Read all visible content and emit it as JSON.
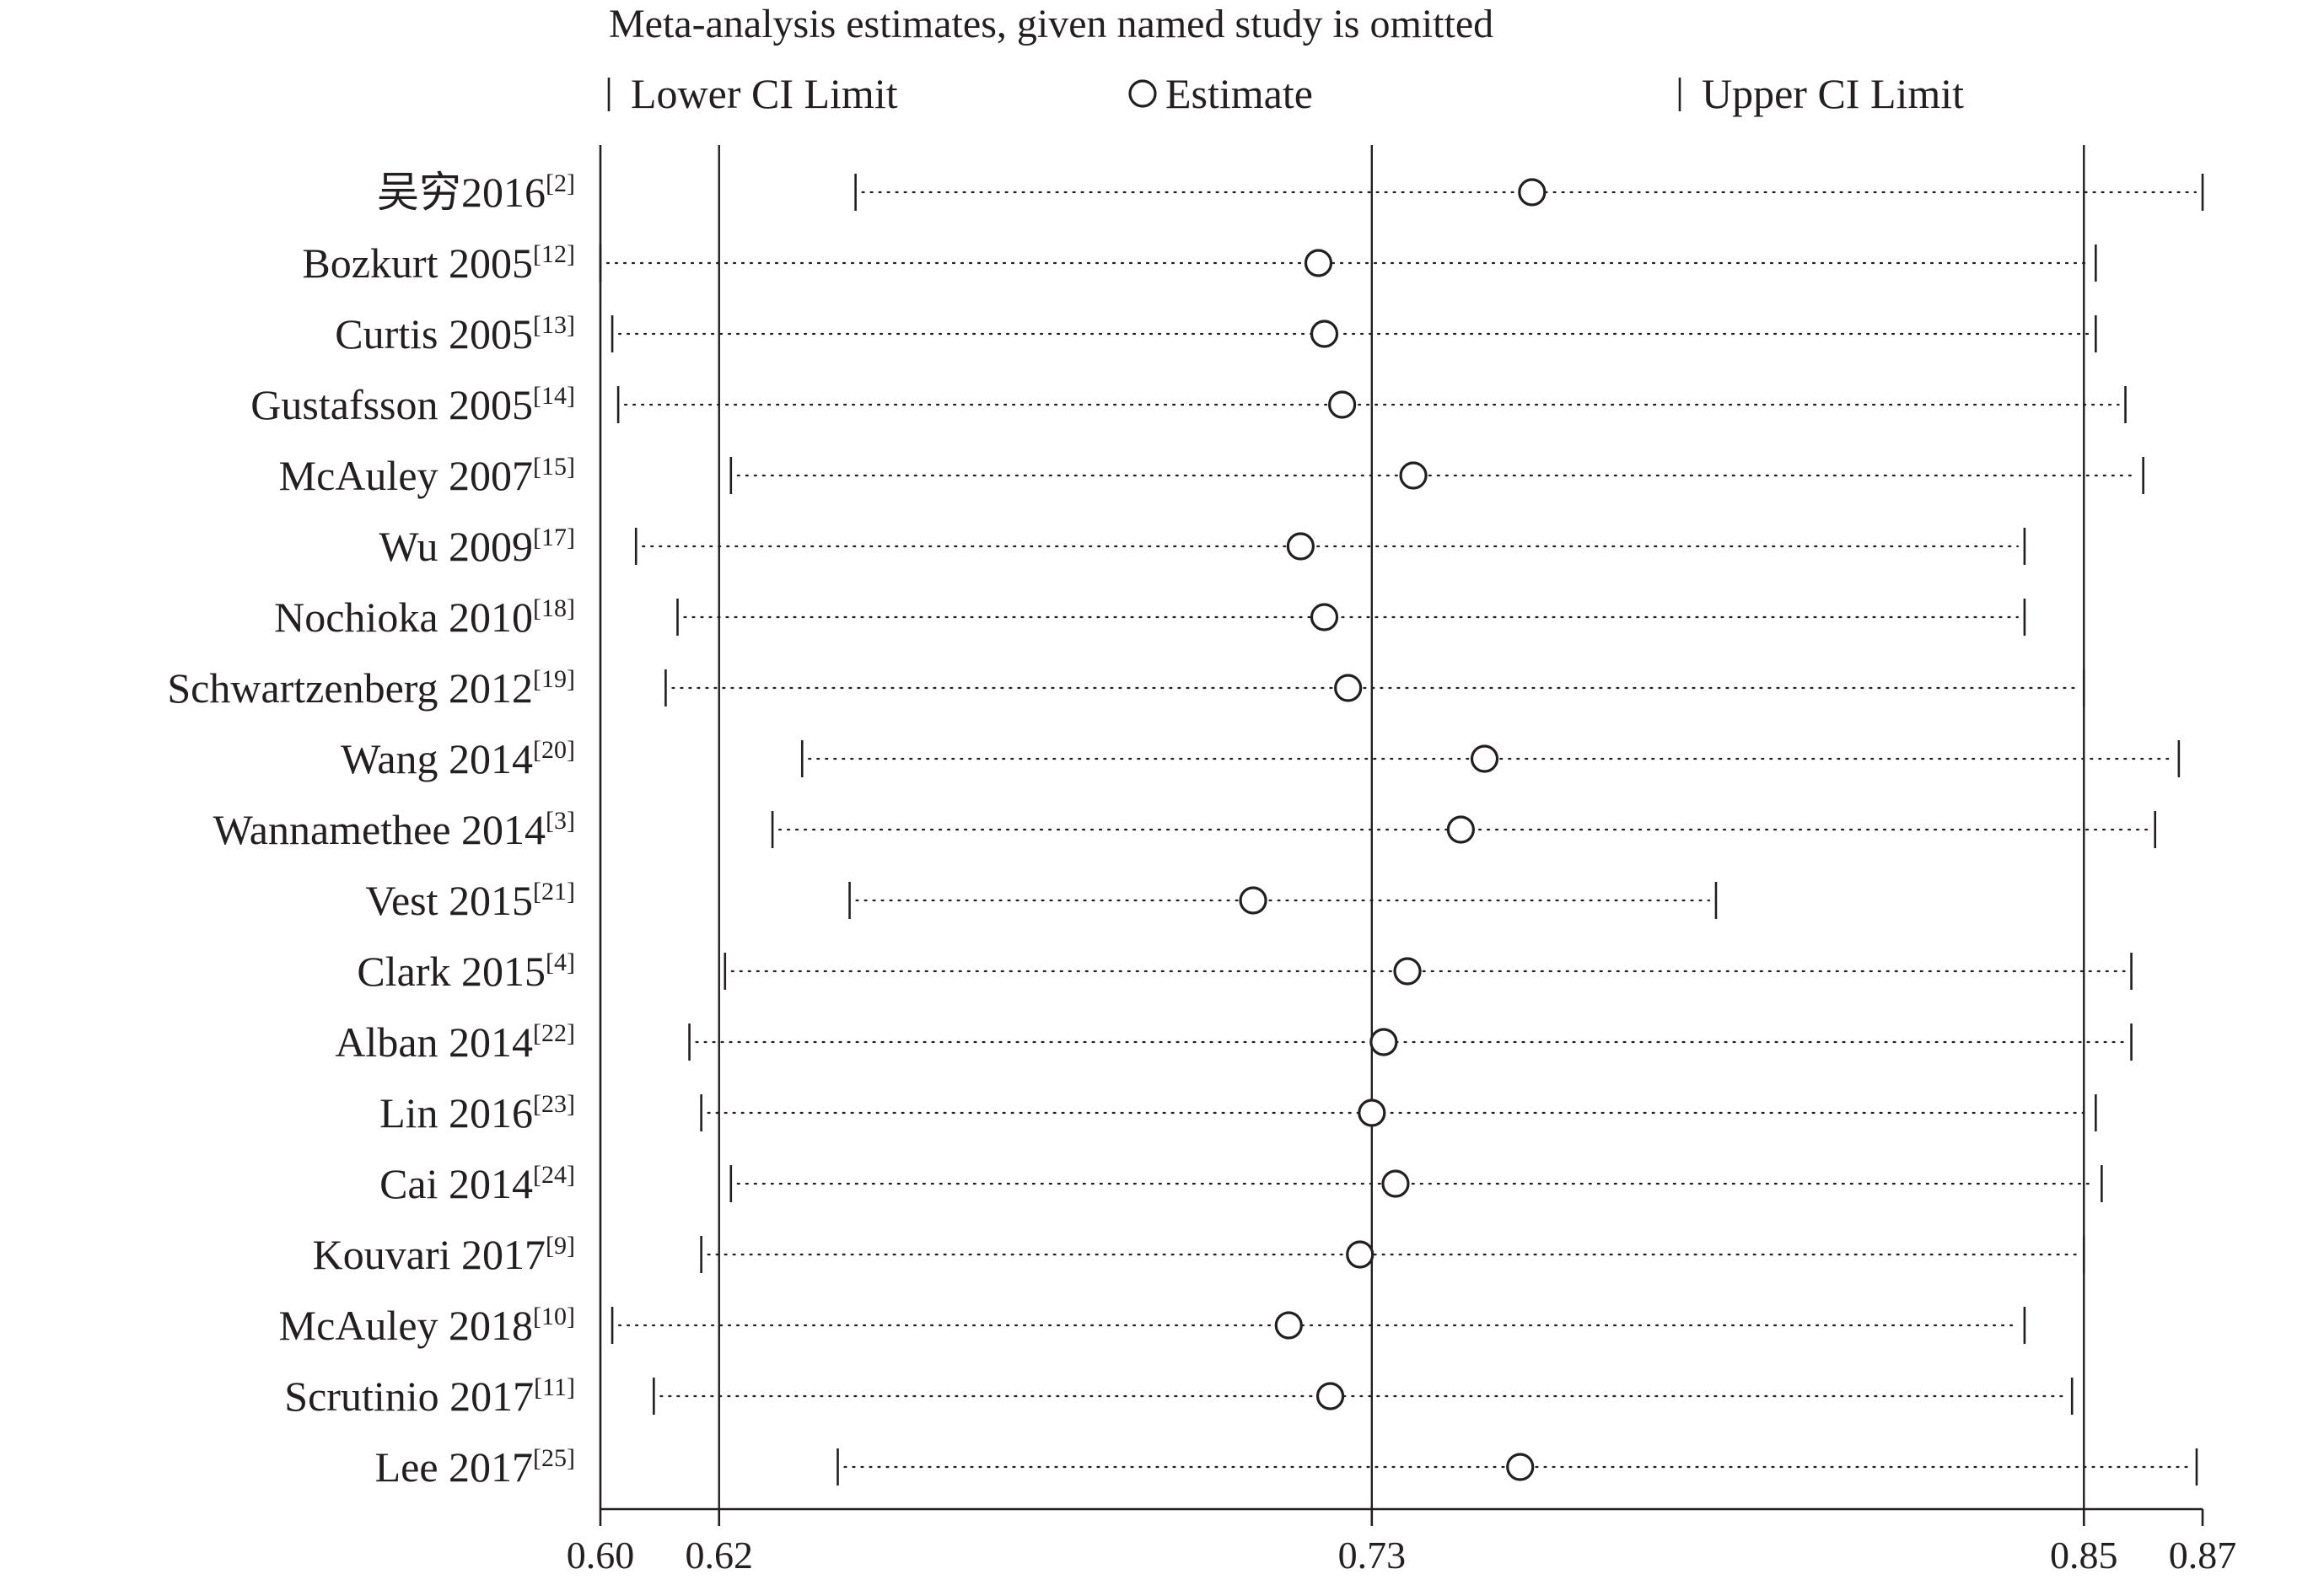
{
  "chart_data": {
    "type": "forest",
    "title": "Meta-analysis estimates, given named study is omitted",
    "legend": {
      "lower": "Lower CI Limit",
      "estimate": "Estimate",
      "upper": "Upper CI Limit",
      "placement": "top"
    },
    "xlim": [
      0.6,
      0.87
    ],
    "x_ticks": [
      {
        "value": 0.6,
        "label": "0.60"
      },
      {
        "value": 0.62,
        "label": "0.62"
      },
      {
        "value": 0.73,
        "label": "0.73"
      },
      {
        "value": 0.85,
        "label": "0.85"
      },
      {
        "value": 0.87,
        "label": "0.87"
      }
    ],
    "reference_lines": [
      0.62,
      0.73,
      0.85
    ],
    "grid": false,
    "studies": [
      {
        "name": "吴穷2016",
        "ref": "[2]",
        "lower": 0.643,
        "estimate": 0.757,
        "upper": 0.87
      },
      {
        "name": "Bozkurt 2005",
        "ref": "[12]",
        "lower": 0.6,
        "estimate": 0.721,
        "upper": 0.852
      },
      {
        "name": "Curtis 2005",
        "ref": "[13]",
        "lower": 0.602,
        "estimate": 0.722,
        "upper": 0.852
      },
      {
        "name": "Gustafsson  2005",
        "ref": "[14]",
        "lower": 0.603,
        "estimate": 0.725,
        "upper": 0.857
      },
      {
        "name": "McAuley 2007",
        "ref": "[15]",
        "lower": 0.622,
        "estimate": 0.737,
        "upper": 0.86
      },
      {
        "name": "Wu 2009",
        "ref": "[17]",
        "lower": 0.606,
        "estimate": 0.718,
        "upper": 0.84
      },
      {
        "name": "Nochioka 2010",
        "ref": "[18]",
        "lower": 0.613,
        "estimate": 0.722,
        "upper": 0.84
      },
      {
        "name": "Schwartzenberg 2012",
        "ref": "[19]",
        "lower": 0.611,
        "estimate": 0.726,
        "upper": 0.85
      },
      {
        "name": "Wang 2014",
        "ref": "[20]",
        "lower": 0.634,
        "estimate": 0.749,
        "upper": 0.866
      },
      {
        "name": "Wannamethee 2014",
        "ref": "[3]",
        "lower": 0.629,
        "estimate": 0.745,
        "upper": 0.862
      },
      {
        "name": "Vest 2015",
        "ref": "[21]",
        "lower": 0.642,
        "estimate": 0.71,
        "upper": 0.788
      },
      {
        "name": "Clark 2015",
        "ref": "[4]",
        "lower": 0.621,
        "estimate": 0.736,
        "upper": 0.858
      },
      {
        "name": "Alban 2014",
        "ref": "[22]",
        "lower": 0.615,
        "estimate": 0.732,
        "upper": 0.858
      },
      {
        "name": "Lin 2016",
        "ref": "[23]",
        "lower": 0.617,
        "estimate": 0.73,
        "upper": 0.852
      },
      {
        "name": "Cai 2014",
        "ref": "[24]",
        "lower": 0.622,
        "estimate": 0.734,
        "upper": 0.853
      },
      {
        "name": "Kouvari 2017",
        "ref": "[9]",
        "lower": 0.617,
        "estimate": 0.728,
        "upper": 0.85
      },
      {
        "name": "McAuley 2018",
        "ref": "[10]",
        "lower": 0.602,
        "estimate": 0.716,
        "upper": 0.84
      },
      {
        "name": "Scrutinio 2017",
        "ref": "[11]",
        "lower": 0.609,
        "estimate": 0.723,
        "upper": 0.848
      },
      {
        "name": "Lee 2017",
        "ref": "[25]",
        "lower": 0.64,
        "estimate": 0.755,
        "upper": 0.869
      }
    ]
  }
}
